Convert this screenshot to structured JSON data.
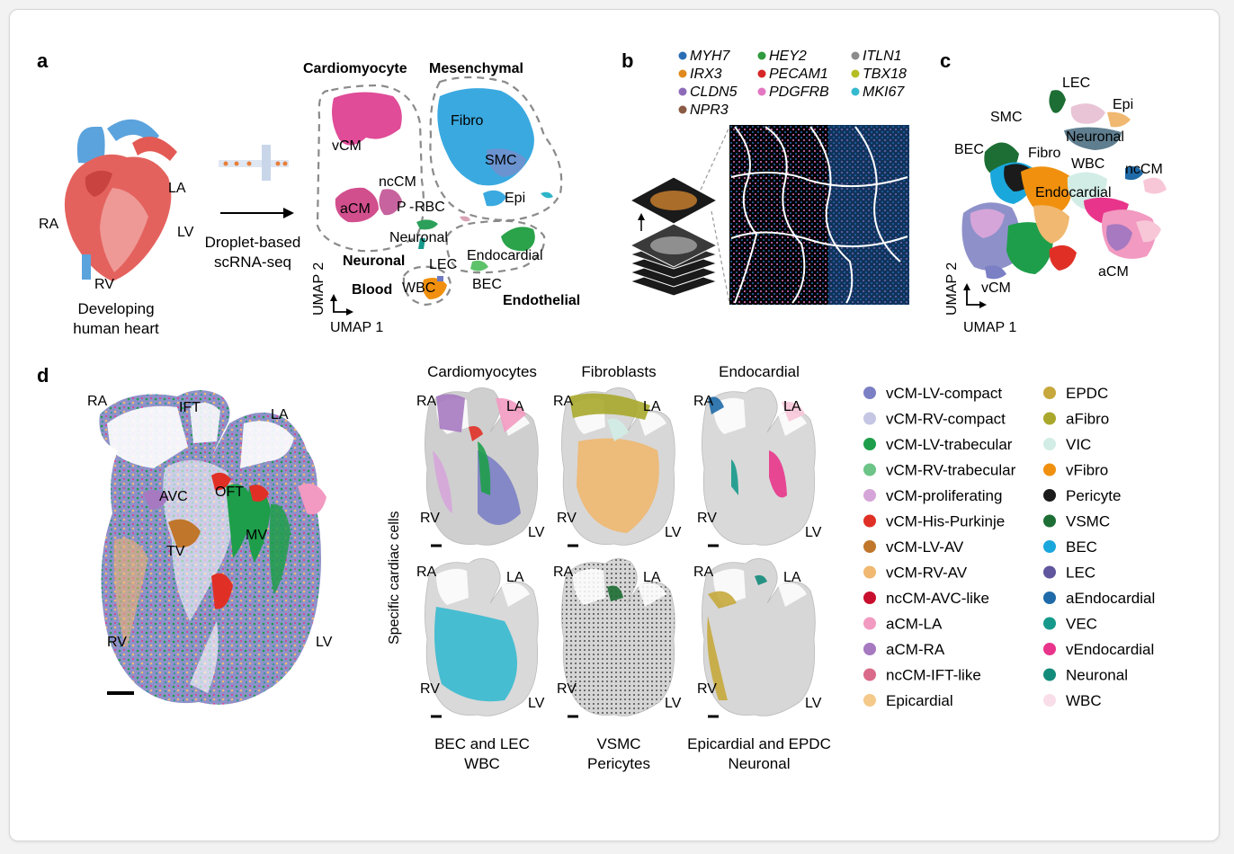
{
  "panels": {
    "a": "a",
    "b": "b",
    "c": "c",
    "d": "d"
  },
  "a": {
    "heart_labels": {
      "ra": "RA",
      "la": "LA",
      "lv": "LV",
      "rv": "RV"
    },
    "caption": [
      "Developing",
      "human heart"
    ],
    "method": [
      "Droplet-based",
      "scRNA-seq"
    ],
    "groups": {
      "cardiomyocyte": "Cardiomyocyte",
      "mesenchymal": "Mesenchymal",
      "neuronal": "Neuronal",
      "blood": "Blood",
      "endothelial": "Endothelial"
    },
    "clusters": {
      "vcm": "vCM",
      "fibro": "Fibro",
      "smc": "SMC",
      "nccm": "ncCM",
      "acm": "aCM",
      "p": "P",
      "rbc": "RBC",
      "epi": "Epi",
      "neuronal": "Neuronal",
      "lec": "LEC",
      "endocardial": "Endocardial",
      "wbc": "WBC",
      "bec": "BEC"
    },
    "axes": {
      "x": "UMAP 1",
      "y": "UMAP 2"
    }
  },
  "b": {
    "genes": [
      {
        "name": "MYH7",
        "color": "#2a6db5"
      },
      {
        "name": "IRX3",
        "color": "#e08a1e"
      },
      {
        "name": "CLDN5",
        "color": "#8e6bb8"
      },
      {
        "name": "NPR3",
        "color": "#8a5a44"
      },
      {
        "name": "HEY2",
        "color": "#2f9a3e"
      },
      {
        "name": "PECAM1",
        "color": "#d62728"
      },
      {
        "name": "PDGFRB",
        "color": "#e377c2"
      },
      {
        "name": "ITLN1",
        "color": "#8c8c8c"
      },
      {
        "name": "TBX18",
        "color": "#b5bd22"
      },
      {
        "name": "MKI67",
        "color": "#35b9cf"
      }
    ]
  },
  "c": {
    "clusters": {
      "lec": "LEC",
      "epi": "Epi",
      "smc": "SMC",
      "bec": "BEC",
      "neuronal": "Neuronal",
      "fibro": "Fibro",
      "wbc": "WBC",
      "nccm": "ncCM",
      "endocardial": "Endocardial",
      "acm": "aCM",
      "vcm": "vCM"
    },
    "axes": {
      "x": "UMAP 1",
      "y": "UMAP 2"
    }
  },
  "d": {
    "main_labels": {
      "ra": "RA",
      "ift": "IFT",
      "la": "LA",
      "avc": "AVC",
      "oft": "OFT",
      "tv": "TV",
      "mv": "MV",
      "rv": "RV",
      "lv": "LV"
    },
    "side_label": "Specific cardiac cells",
    "mini": [
      {
        "top": "Cardiomyocytes",
        "bottom": [
          "",
          ""
        ]
      },
      {
        "top": "Fibroblasts",
        "bottom": [
          "",
          ""
        ]
      },
      {
        "top": "Endocardial",
        "bottom": [
          "",
          ""
        ]
      },
      {
        "top": "",
        "bottom": [
          "BEC and LEC",
          "WBC"
        ]
      },
      {
        "top": "",
        "bottom": [
          "VSMC",
          "Pericytes"
        ]
      },
      {
        "top": "",
        "bottom": [
          "Epicardial and EPDC",
          "Neuronal"
        ]
      }
    ],
    "mini_labels": {
      "ra": "RA",
      "la": "LA",
      "rv": "RV",
      "lv": "LV"
    },
    "legend_left": [
      {
        "label": "vCM-LV-compact",
        "color": "#7b7fc4"
      },
      {
        "label": "vCM-RV-compact",
        "color": "#c5c6e3"
      },
      {
        "label": "vCM-LV-trabecular",
        "color": "#1e9e4a"
      },
      {
        "label": "vCM-RV-trabecular",
        "color": "#6cc486"
      },
      {
        "label": "vCM-proliferating",
        "color": "#d5a5d9"
      },
      {
        "label": "vCM-His-Purkinje",
        "color": "#e03026"
      },
      {
        "label": "vCM-LV-AV",
        "color": "#c0762b"
      },
      {
        "label": "vCM-RV-AV",
        "color": "#f0b870"
      },
      {
        "label": "ncCM-AVC-like",
        "color": "#c8102e"
      },
      {
        "label": "aCM-LA",
        "color": "#f29ac1"
      },
      {
        "label": "aCM-RA",
        "color": "#a679c0"
      },
      {
        "label": "ncCM-IFT-like",
        "color": "#d96a8a"
      },
      {
        "label": "Epicardial",
        "color": "#f5c98a"
      }
    ],
    "legend_right": [
      {
        "label": "EPDC",
        "color": "#c7a83c"
      },
      {
        "label": "aFibro",
        "color": "#a9a82c"
      },
      {
        "label": "VIC",
        "color": "#d2ede6"
      },
      {
        "label": "vFibro",
        "color": "#f0900e"
      },
      {
        "label": "Pericyte",
        "color": "#1b1b1b"
      },
      {
        "label": "VSMC",
        "color": "#1d6e34"
      },
      {
        "label": "BEC",
        "color": "#1aa7dc"
      },
      {
        "label": "LEC",
        "color": "#5f569d"
      },
      {
        "label": "aEndocardial",
        "color": "#1f6aa8"
      },
      {
        "label": "VEC",
        "color": "#16998a"
      },
      {
        "label": "vEndocardial",
        "color": "#e8358b"
      },
      {
        "label": "Neuronal",
        "color": "#138b7b"
      },
      {
        "label": "WBC",
        "color": "#f9dde8"
      }
    ]
  }
}
